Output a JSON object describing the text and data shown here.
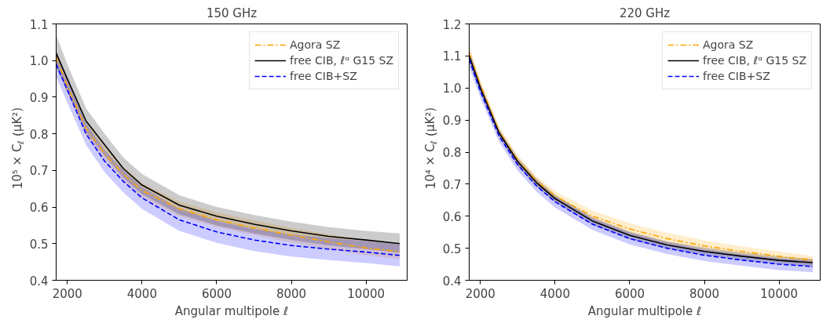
{
  "chart_data": [
    {
      "type": "line",
      "title": "150 GHz",
      "xlabel": "Angular multipole ℓ",
      "ylabel": "10⁵ × C$_{ℓ}$ (μK²)",
      "x": [
        1700,
        2000,
        2500,
        3000,
        3500,
        4000,
        5000,
        6000,
        7000,
        8000,
        9000,
        10000,
        10900
      ],
      "xlim": [
        1700,
        11100
      ],
      "xticks": [
        2000,
        4000,
        6000,
        8000,
        10000
      ],
      "ylim": [
        0.4,
        1.1
      ],
      "yticks": [
        0.4,
        0.5,
        0.6,
        0.7,
        0.8,
        0.9,
        {
          "value": 1.0,
          "label": "1.0"
        },
        1.1
      ],
      "grid": false,
      "legend": "top right",
      "series": [
        {
          "name": "Agora SZ",
          "color": "#ffa500",
          "line_style": "dashdot",
          "values": [
            1.01,
            0.93,
            0.815,
            0.745,
            0.69,
            0.645,
            0.595,
            0.565,
            0.543,
            0.523,
            0.505,
            0.488,
            0.478
          ],
          "lower": [
            0.99,
            0.91,
            0.795,
            0.725,
            0.67,
            0.625,
            0.575,
            0.545,
            0.523,
            0.503,
            0.485,
            0.468,
            0.458
          ],
          "upper": [
            1.03,
            0.95,
            0.835,
            0.765,
            0.71,
            0.665,
            0.615,
            0.585,
            0.563,
            0.543,
            0.525,
            0.508,
            0.498
          ]
        },
        {
          "name": "free CIB, ℓᵅ G15 SZ",
          "color": "#000000",
          "line_style": "solid",
          "values": [
            1.02,
            0.95,
            0.835,
            0.77,
            0.705,
            0.66,
            0.605,
            0.575,
            0.553,
            0.535,
            0.52,
            0.51,
            0.5
          ],
          "lower": [
            0.98,
            0.915,
            0.805,
            0.74,
            0.68,
            0.635,
            0.58,
            0.55,
            0.528,
            0.51,
            0.495,
            0.485,
            0.475
          ],
          "upper": [
            1.07,
            0.99,
            0.87,
            0.8,
            0.735,
            0.69,
            0.632,
            0.6,
            0.578,
            0.56,
            0.545,
            0.535,
            0.528
          ]
        },
        {
          "name": "free CIB+SZ",
          "color": "#0000ff",
          "line_style": "dashed",
          "values": [
            0.99,
            0.92,
            0.8,
            0.725,
            0.67,
            0.625,
            0.565,
            0.532,
            0.51,
            0.495,
            0.485,
            0.477,
            0.468
          ],
          "lower": [
            0.955,
            0.885,
            0.77,
            0.695,
            0.64,
            0.595,
            0.535,
            0.502,
            0.48,
            0.465,
            0.455,
            0.447,
            0.438
          ],
          "upper": [
            1.025,
            0.955,
            0.83,
            0.755,
            0.7,
            0.655,
            0.595,
            0.562,
            0.54,
            0.525,
            0.515,
            0.507,
            0.498
          ]
        }
      ]
    },
    {
      "type": "line",
      "title": "220 GHz",
      "xlabel": "Angular multipole ℓ",
      "ylabel": "10⁴ × C$_{ℓ}$ (μK²)",
      "x": [
        1700,
        2000,
        2500,
        3000,
        3500,
        4000,
        5000,
        6000,
        7000,
        8000,
        9000,
        10000,
        10900
      ],
      "xlim": [
        1700,
        11100
      ],
      "xticks": [
        2000,
        4000,
        6000,
        8000,
        10000
      ],
      "ylim": [
        0.4,
        1.2
      ],
      "yticks": [
        0.4,
        0.5,
        0.6,
        0.7,
        0.8,
        0.9,
        {
          "value": 1.0,
          "label": "1.0"
        },
        1.1,
        1.2
      ],
      "grid": false,
      "legend": "top right",
      "series": [
        {
          "name": "Agora SZ",
          "color": "#ffa500",
          "line_style": "dashdot",
          "values": [
            1.11,
            1.01,
            0.865,
            0.775,
            0.71,
            0.663,
            0.6,
            0.56,
            0.53,
            0.507,
            0.49,
            0.475,
            0.462
          ],
          "lower": [
            1.09,
            0.995,
            0.85,
            0.76,
            0.695,
            0.648,
            0.583,
            0.542,
            0.512,
            0.49,
            0.474,
            0.46,
            0.448
          ],
          "upper": [
            1.13,
            1.025,
            0.88,
            0.79,
            0.725,
            0.678,
            0.617,
            0.578,
            0.548,
            0.524,
            0.506,
            0.49,
            0.476
          ]
        },
        {
          "name": "free CIB, ℓᵅ G15 SZ",
          "color": "#000000",
          "line_style": "solid",
          "values": [
            1.1,
            1.0,
            0.86,
            0.77,
            0.705,
            0.655,
            0.585,
            0.54,
            0.51,
            0.49,
            0.475,
            0.462,
            0.455
          ],
          "lower": [
            1.08,
            0.985,
            0.847,
            0.757,
            0.692,
            0.643,
            0.573,
            0.528,
            0.498,
            0.478,
            0.463,
            0.45,
            0.443
          ],
          "upper": [
            1.12,
            1.015,
            0.873,
            0.783,
            0.718,
            0.667,
            0.597,
            0.552,
            0.522,
            0.502,
            0.487,
            0.474,
            0.467
          ]
        },
        {
          "name": "free CIB+SZ",
          "color": "#0000ff",
          "line_style": "dashed",
          "values": [
            1.09,
            0.99,
            0.85,
            0.76,
            0.695,
            0.645,
            0.575,
            0.53,
            0.5,
            0.478,
            0.463,
            0.45,
            0.443
          ],
          "lower": [
            1.065,
            0.97,
            0.832,
            0.742,
            0.677,
            0.627,
            0.557,
            0.512,
            0.482,
            0.46,
            0.445,
            0.432,
            0.425
          ],
          "upper": [
            1.115,
            1.01,
            0.868,
            0.778,
            0.713,
            0.663,
            0.593,
            0.548,
            0.518,
            0.496,
            0.481,
            0.468,
            0.461
          ]
        }
      ]
    }
  ]
}
